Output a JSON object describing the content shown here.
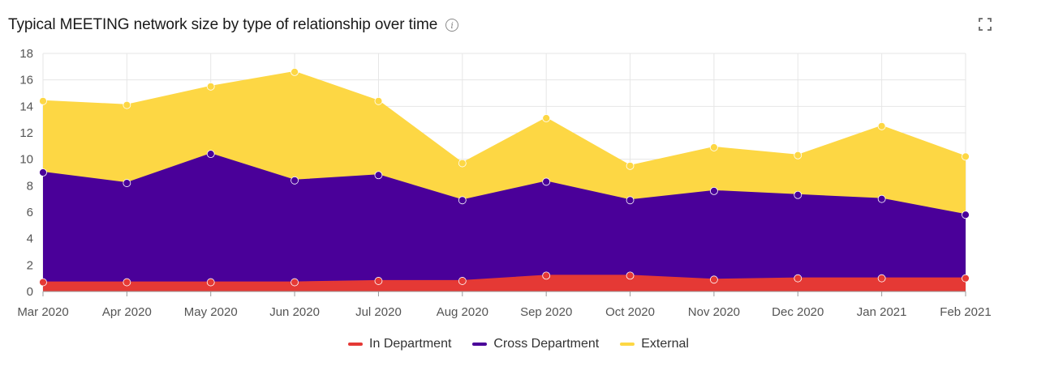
{
  "header": {
    "title": "Typical MEETING network size by type of relationship over time",
    "info_icon": "info-circle-icon",
    "expand_icon": "fullscreen-icon"
  },
  "chart_data": {
    "type": "area",
    "stacked": true,
    "title": "Typical MEETING network size by type of relationship over time",
    "categories": [
      "Mar 2020",
      "Apr 2020",
      "May 2020",
      "Jun 2020",
      "Jul 2020",
      "Aug 2020",
      "Sep 2020",
      "Oct 2020",
      "Nov 2020",
      "Dec 2020",
      "Jan 2021",
      "Feb 2021"
    ],
    "y_ticks": [
      "0",
      "2",
      "4",
      "6",
      "8",
      "10",
      "12",
      "14",
      "16",
      "18"
    ],
    "ylim": [
      0,
      18
    ],
    "grid": true,
    "legend_position": "bottom",
    "series": [
      {
        "name": "In Department",
        "color": "#e53935",
        "values": [
          0.7,
          0.7,
          0.7,
          0.7,
          0.8,
          0.8,
          1.2,
          1.2,
          0.9,
          1.0,
          1.0,
          1.0
        ]
      },
      {
        "name": "Cross Department",
        "color": "#4a0099",
        "values": [
          8.3,
          7.5,
          9.7,
          7.7,
          8.0,
          6.1,
          7.1,
          5.7,
          6.7,
          6.3,
          6.0,
          4.8
        ]
      },
      {
        "name": "External",
        "color": "#fdd744",
        "values": [
          5.4,
          5.9,
          5.1,
          8.2,
          5.6,
          2.8,
          4.8,
          2.6,
          3.3,
          3.0,
          5.5,
          4.4
        ]
      }
    ]
  }
}
